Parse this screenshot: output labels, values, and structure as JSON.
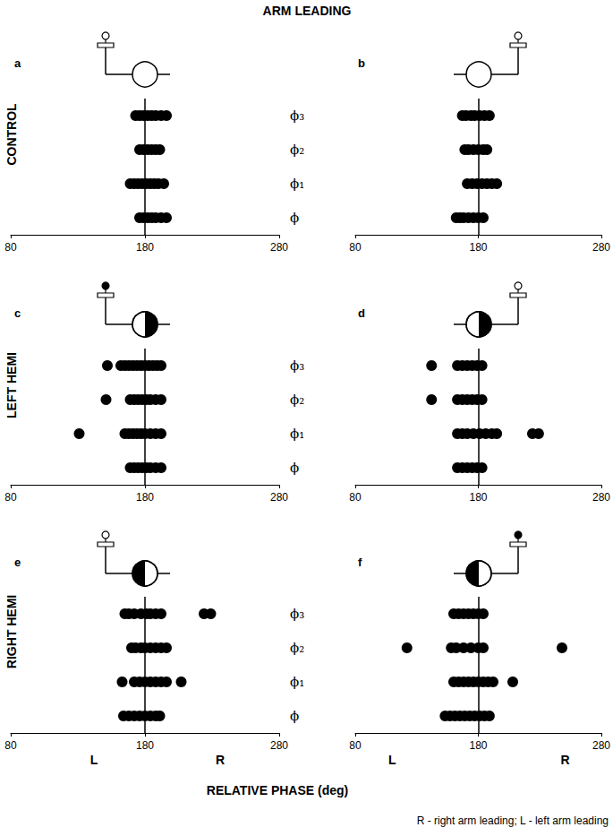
{
  "title": "ARM LEADING",
  "row_labels": [
    "CONTROL",
    "LEFT HEMI",
    "RIGHT HEMI"
  ],
  "xlabel": "RELATIVE PHASE (deg)",
  "note": "R - right arm leading; L - left arm leading",
  "chart_data": [
    {
      "type": "scatter",
      "title": "a",
      "marker": "circle",
      "color": "#000000",
      "grid": false,
      "tick_labels": true,
      "categories": [
        "ϕ",
        "ϕ₁",
        "ϕ₂",
        "ϕ₃"
      ],
      "values": [
        [
          176,
          179,
          182,
          185,
          188,
          192,
          196
        ],
        [
          169,
          172,
          175,
          178,
          181,
          184,
          187,
          190,
          194
        ],
        [
          176,
          179,
          182,
          185,
          188,
          191
        ],
        [
          173,
          176,
          179,
          182,
          185,
          188,
          192,
          196
        ]
      ],
      "reference_x": 180,
      "xlim": [
        80,
        280
      ],
      "xticks": [
        80,
        180,
        280
      ]
    },
    {
      "type": "scatter",
      "title": "b",
      "marker": "circle",
      "color": "#000000",
      "grid": false,
      "tick_labels": "x",
      "categories": [
        "ϕ",
        "ϕ₁",
        "ϕ₂",
        "ϕ₃"
      ],
      "values": [
        [
          162,
          165,
          168,
          172,
          176,
          180,
          184
        ],
        [
          171,
          175,
          179,
          183,
          187,
          191,
          195
        ],
        [
          169,
          172,
          176,
          180,
          184,
          187
        ],
        [
          167,
          170,
          174,
          177,
          181,
          185,
          189
        ]
      ],
      "reference_x": 180,
      "xlim": [
        80,
        280
      ],
      "xticks": [
        80,
        180,
        280
      ]
    },
    {
      "type": "scatter",
      "title": "c",
      "marker": "circle",
      "color": "#000000",
      "grid": false,
      "tick_labels": true,
      "categories": [
        "ϕ",
        "ϕ₁",
        "ϕ₂",
        "ϕ₃"
      ],
      "values": [
        [
          169,
          172,
          175,
          178,
          181,
          184,
          188,
          192
        ],
        [
          131,
          165,
          168,
          171,
          174,
          177,
          180,
          184,
          188,
          192
        ],
        [
          151,
          169,
          172,
          175,
          178,
          181,
          184,
          188,
          192
        ],
        [
          152,
          162,
          165,
          168,
          171,
          174,
          177,
          180,
          183,
          186,
          189,
          192
        ]
      ],
      "reference_x": 180,
      "xlim": [
        80,
        280
      ],
      "xticks": [
        80,
        180,
        280
      ]
    },
    {
      "type": "scatter",
      "title": "d",
      "marker": "circle",
      "color": "#000000",
      "grid": false,
      "tick_labels": "x",
      "categories": [
        "ϕ",
        "ϕ₁",
        "ϕ₂",
        "ϕ₃"
      ],
      "values": [
        [
          163,
          167,
          171,
          175,
          179,
          183
        ],
        [
          163,
          167,
          171,
          176,
          181,
          186,
          191,
          195,
          224,
          229
        ],
        [
          142,
          163,
          167,
          171,
          175,
          179,
          183
        ],
        [
          142,
          163,
          167,
          171,
          175,
          179,
          183
        ]
      ],
      "reference_x": 180,
      "xlim": [
        80,
        280
      ],
      "xticks": [
        80,
        180,
        280
      ]
    },
    {
      "type": "scatter",
      "title": "e",
      "marker": "circle",
      "color": "#000000",
      "grid": false,
      "tick_labels": true,
      "categories": [
        "ϕ",
        "ϕ₁",
        "ϕ₂",
        "ϕ₃"
      ],
      "values": [
        [
          164,
          168,
          172,
          176,
          180,
          184,
          188,
          191
        ],
        [
          163,
          172,
          176,
          180,
          184,
          188,
          192,
          196,
          207
        ],
        [
          170,
          173,
          177,
          180,
          184,
          188,
          192,
          196
        ],
        [
          165,
          168,
          172,
          177,
          181,
          184,
          188,
          192,
          224,
          229
        ]
      ],
      "reference_x": 180,
      "xlim": [
        80,
        280
      ],
      "xticks": [
        80,
        180,
        280
      ],
      "annotations": [
        "L",
        "R"
      ]
    },
    {
      "type": "scatter",
      "title": "f",
      "marker": "circle",
      "color": "#000000",
      "grid": false,
      "tick_labels": "x",
      "categories": [
        "ϕ",
        "ϕ₁",
        "ϕ₂",
        "ϕ₃"
      ],
      "values": [
        [
          153,
          157,
          161,
          165,
          169,
          173,
          177,
          181,
          185,
          189
        ],
        [
          160,
          164,
          168,
          172,
          176,
          180,
          184,
          188,
          192,
          208
        ],
        [
          122,
          158,
          162,
          168,
          174,
          180,
          184,
          248
        ],
        [
          160,
          164,
          168,
          172,
          176,
          180,
          184
        ]
      ],
      "reference_x": 180,
      "xlim": [
        80,
        280
      ],
      "xticks": [
        80,
        180,
        280
      ],
      "annotations": [
        "L",
        "R"
      ]
    }
  ]
}
